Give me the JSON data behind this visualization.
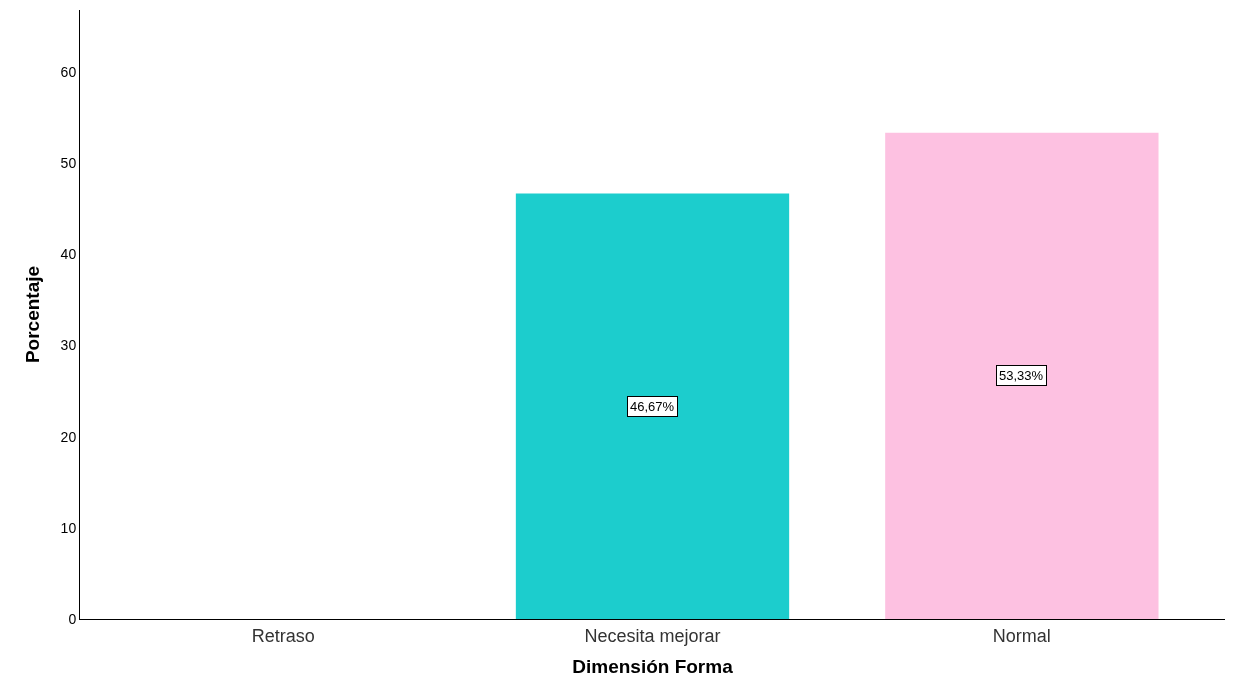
{
  "chart_data": {
    "type": "bar",
    "xlabel": "Dimensión Forma",
    "ylabel": "Porcentaje",
    "categories": [
      "Retraso",
      "Necesita mejorar",
      "Normal"
    ],
    "values": [
      0,
      46.67,
      53.33
    ],
    "colors": [
      "#1ccdcd",
      "#1ccdcd",
      "#fdc1e1"
    ],
    "value_labels": [
      null,
      "46,67%",
      "53,33%"
    ],
    "ylim": [
      0,
      66.8
    ],
    "yticks": [
      0,
      10,
      20,
      30,
      40,
      50,
      60
    ]
  }
}
